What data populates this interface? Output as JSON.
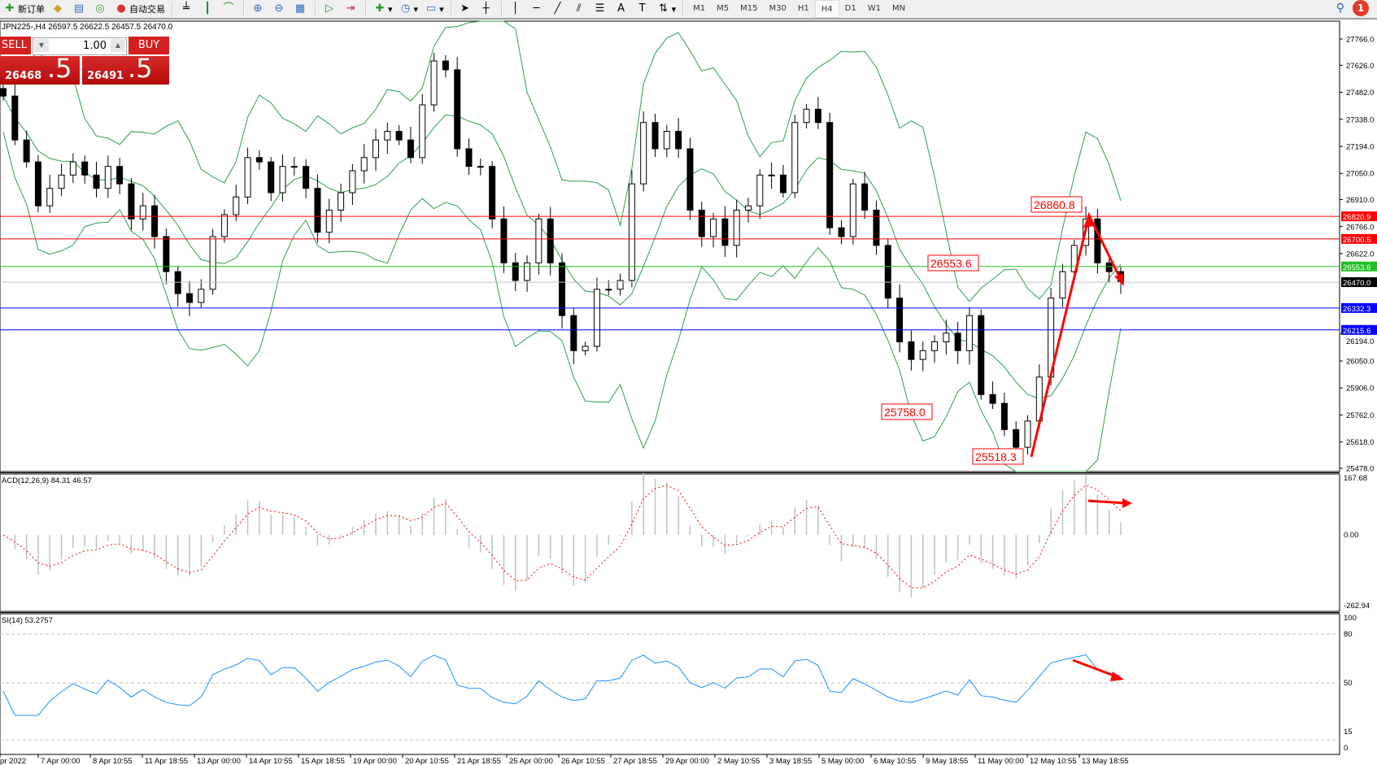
{
  "toolbar": {
    "new_order": "新订单",
    "auto_trading": "自动交易",
    "timeframes": [
      "M1",
      "M5",
      "M15",
      "M30",
      "H1",
      "H4",
      "D1",
      "W1",
      "MN"
    ],
    "active_timeframe": "H4",
    "notification_count": "1",
    "drawing_tools": [
      "cursor-icon",
      "crosshair-icon",
      "vertical-line-icon",
      "horizontal-line-icon",
      "trendline-icon",
      "fibonacci-icon",
      "fib-levels-icon",
      "text-icon",
      "text-label-icon",
      "arrows-icon"
    ]
  },
  "symbol_info": "JPN225-,H4  26597.5 26622.5 26457.5 26470.0",
  "trade_panel": {
    "sell_label": "SELL",
    "buy_label": "BUY",
    "lot": "1.00",
    "sell_price_main": "26468",
    "sell_price_tail": ".5",
    "buy_price_main": "26491",
    "buy_price_tail": ".5",
    "color": "#d42020"
  },
  "chart_data": [
    {
      "type": "candlestick",
      "symbol": "JPN225-",
      "timeframe": "H4",
      "ylim": [
        25478.0,
        27766.0
      ],
      "price_ticks": [
        "27766.0",
        "27626.0",
        "27482.0",
        "27338.0",
        "27194.0",
        "27050.0",
        "26910.0",
        "26766.0",
        "26622.0",
        "26194.0",
        "26050.0",
        "25906.0",
        "25762.0",
        "25618.0",
        "25478.0"
      ],
      "closes": [
        27462,
        27228,
        27111,
        26877,
        26970,
        27041,
        27111,
        27041,
        26970,
        27087,
        26994,
        26807,
        26877,
        26713,
        26526,
        26409,
        26362,
        26432,
        26713,
        26830,
        26924,
        27134,
        27111,
        26947,
        27087,
        27087,
        26970,
        26736,
        26854,
        26947,
        27064,
        27134,
        27228,
        27274,
        27228,
        27134,
        27415,
        27649,
        27602,
        27181,
        27087,
        27087,
        26807,
        26573,
        26479,
        26573,
        26807,
        26573,
        26292,
        26105,
        26128,
        26432,
        26432,
        26479,
        26994,
        27321,
        27181,
        27274,
        27181,
        26854,
        26713,
        26807,
        26666,
        26854,
        26877,
        27041,
        27041,
        26947,
        27321,
        27392,
        27321,
        26760,
        26713,
        26994,
        26854,
        26666,
        26385,
        26152,
        26058,
        26105,
        26152,
        26198,
        26105,
        26292,
        25871,
        25824,
        25684,
        25590,
        25730,
        25964,
        26385,
        26526,
        26666,
        26807,
        26573,
        26526,
        26470
      ],
      "indicator_overlay": "Bollinger Bands",
      "hlines": [
        {
          "price": "26820.9",
          "color": "#ff0000"
        },
        {
          "price": "26700.5",
          "color": "#ff0000"
        },
        {
          "price": "26553.6",
          "color": "#22c022"
        },
        {
          "price": "26470.0",
          "color": "#000000",
          "line_color": "#c0c0c0"
        },
        {
          "price": "26332.3",
          "color": "#0000ff"
        },
        {
          "price": "26215.6",
          "color": "#0000ff"
        }
      ],
      "annotations": [
        "26860.8",
        "26553.6",
        "25758.0",
        "25518.3"
      ],
      "time_labels": [
        "pr 2022",
        "7 Apr 00:00",
        "8 Apr 10:55",
        "11 Apr 18:55",
        "13 Apr 00:00",
        "14 Apr 10:55",
        "15 Apr 18:55",
        "19 Apr 00:00",
        "20 Apr 10:55",
        "21 Apr 18:55",
        "25 Apr 00:00",
        "26 Apr 10:55",
        "27 Apr 18:55",
        "29 Apr 00:00",
        "2 May 10:55",
        "3 May 18:55",
        "5 May 00:00",
        "6 May 10:55",
        "9 May 18:55",
        "11 May 00:00",
        "12 May 10:55",
        "13 May 18:55"
      ]
    },
    {
      "type": "bar+line",
      "label": "ACD(12,26,9) 84.31 46.57",
      "ticks": [
        "167.68",
        "0.00",
        "-262.94"
      ],
      "ylim": [
        -262.94,
        167.68
      ],
      "histogram_color": "#c0c0c0",
      "signal_color": "#ff0000"
    },
    {
      "type": "line",
      "label": "SI(14) 53.2757",
      "ticks": [
        "100",
        "80",
        "50",
        "15",
        "0"
      ],
      "ylim": [
        0,
        100
      ],
      "levels": [
        80,
        50,
        15
      ],
      "line_color": "#1e90ff"
    }
  ]
}
